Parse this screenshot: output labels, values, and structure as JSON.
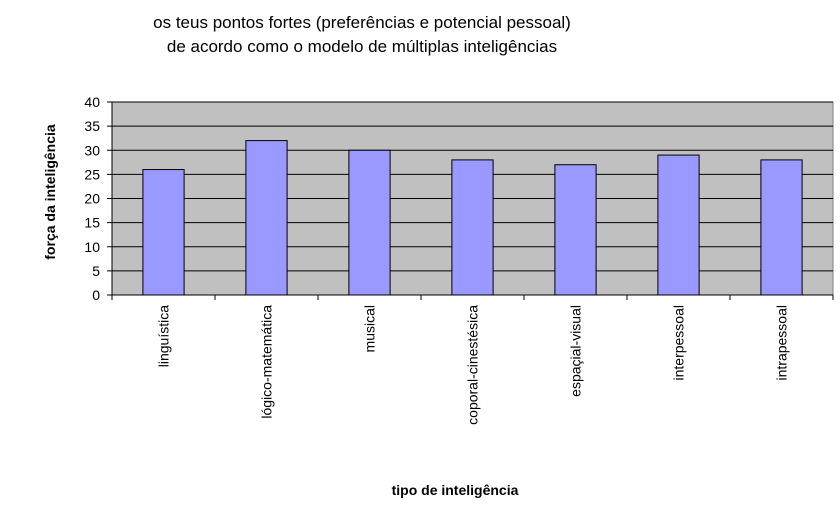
{
  "chart_data": {
    "type": "bar",
    "title": [
      "os teus pontos fortes (preferências e potencial pessoal)",
      "de acordo como o modelo de múltiplas inteligências"
    ],
    "x_label": "tipo de inteligência",
    "y_label": "força da inteligência",
    "categories": [
      "linguística",
      "lógico-matemática",
      "musical",
      "coporal-cinestésica",
      "espaçial-visual",
      "interpessoal",
      "intrapessoal"
    ],
    "values": [
      26,
      32,
      30,
      28,
      27,
      29,
      28
    ],
    "color": "#9999ff",
    "ylim": [
      0,
      40
    ],
    "yticks": [
      0,
      5,
      10,
      15,
      20,
      25,
      30,
      35,
      40
    ],
    "grid": true
  }
}
